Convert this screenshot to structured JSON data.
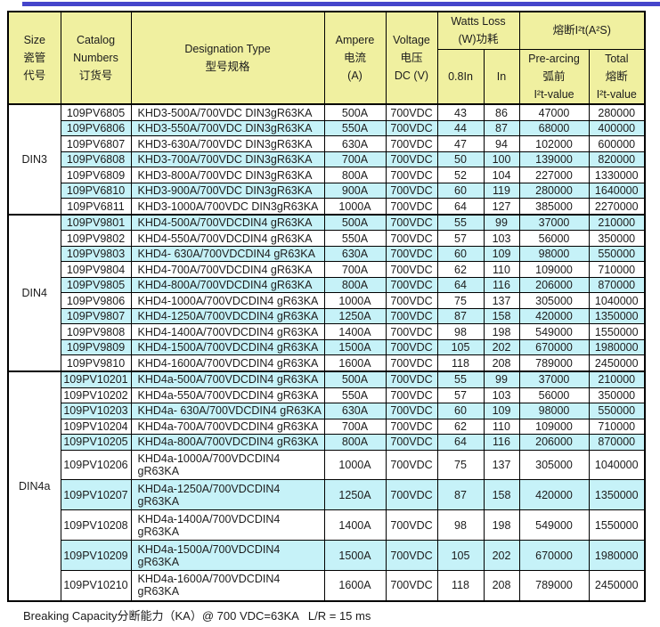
{
  "page": {
    "accent_bar_color": "#4545cb",
    "colors": {
      "header_bg": "#f0f0a0",
      "row_bg": "#ffffff",
      "row_alt_bg": "#c6f2f8",
      "border": "#000000"
    },
    "footer_note": "Breaking Capacity分断能力（KA）@ 700 VDC=63KA   L/R = 15 ms"
  },
  "table": {
    "header": {
      "size": [
        "Size",
        "瓷管",
        "代号"
      ],
      "catalog": [
        "Catalog",
        "Numbers",
        "订货号"
      ],
      "designation": [
        "Designation Type",
        "型号规格"
      ],
      "ampere": [
        "Ampere",
        "电流",
        "(A)"
      ],
      "voltage": [
        "Voltage",
        "电压",
        "DC (V)"
      ],
      "watts_loss_group": [
        "Watts Loss",
        "(W)功耗"
      ],
      "watts_sub_08in": "0.8In",
      "watts_sub_in": "In",
      "i2t_group": "熔断I²t(A²S)",
      "prearcing": [
        "Pre-arcing",
        "弧前",
        "I²t-value"
      ],
      "total": [
        "Total",
        "熔断",
        "I²t-value"
      ]
    },
    "groups": [
      {
        "size": "DIN3",
        "rows": [
          [
            "109PV6805",
            "KHD3-500A/700VDC DIN3gR63KA",
            "500A",
            "700VDC",
            "43",
            "86",
            "47000",
            "280000"
          ],
          [
            "109PV6806",
            "KHD3-550A/700VDC DIN3gR63KA",
            "550A",
            "700VDC",
            "44",
            "87",
            "68000",
            "400000"
          ],
          [
            "109PV6807",
            "KHD3-630A/700VDC DIN3gR63KA",
            "630A",
            "700VDC",
            "47",
            "94",
            "102000",
            "600000"
          ],
          [
            "109PV6808",
            "KHD3-700A/700VDC DIN3gR63KA",
            "700A",
            "700VDC",
            "50",
            "100",
            "139000",
            "820000"
          ],
          [
            "109PV6809",
            "KHD3-800A/700VDC DIN3gR63KA",
            "800A",
            "700VDC",
            "52",
            "104",
            "227000",
            "1330000"
          ],
          [
            "109PV6810",
            "KHD3-900A/700VDC DIN3gR63KA",
            "900A",
            "700VDC",
            "60",
            "119",
            "280000",
            "1640000"
          ],
          [
            "109PV6811",
            "KHD3-1000A/700VDC DIN3gR63KA",
            "1000A",
            "700VDC",
            "64",
            "127",
            "385000",
            "2270000"
          ]
        ]
      },
      {
        "size": "DIN4",
        "rows": [
          [
            "109PV9801",
            "KHD4-500A/700VDCDIN4 gR63KA",
            "500A",
            "700VDC",
            "55",
            "99",
            "37000",
            "210000"
          ],
          [
            "109PV9802",
            "KHD4-550A/700VDCDIN4 gR63KA",
            "550A",
            "700VDC",
            "57",
            "103",
            "56000",
            "350000"
          ],
          [
            "109PV9803",
            "KHD4- 630A/700VDCDIN4 gR63KA",
            "630A",
            "700VDC",
            "60",
            "109",
            "98000",
            "550000"
          ],
          [
            "109PV9804",
            "KHD4-700A/700VDCDIN4 gR63KA",
            "700A",
            "700VDC",
            "62",
            "110",
            "109000",
            "710000"
          ],
          [
            "109PV9805",
            "KHD4-800A/700VDCDIN4 gR63KA",
            "800A",
            "700VDC",
            "64",
            "116",
            "206000",
            "870000"
          ],
          [
            "109PV9806",
            "KHD4-1000A/700VDCDIN4 gR63KA",
            "1000A",
            "700VDC",
            "75",
            "137",
            "305000",
            "1040000"
          ],
          [
            "109PV9807",
            "KHD4-1250A/700VDCDIN4 gR63KA",
            "1250A",
            "700VDC",
            "87",
            "158",
            "420000",
            "1350000"
          ],
          [
            "109PV9808",
            "KHD4-1400A/700VDCDIN4 gR63KA",
            "1400A",
            "700VDC",
            "98",
            "198",
            "549000",
            "1550000"
          ],
          [
            "109PV9809",
            "KHD4-1500A/700VDCDIN4 gR63KA",
            "1500A",
            "700VDC",
            "105",
            "202",
            "670000",
            "1980000"
          ],
          [
            "109PV9810",
            "KHD4-1600A/700VDCDIN4 gR63KA",
            "1600A",
            "700VDC",
            "118",
            "208",
            "789000",
            "2450000"
          ]
        ]
      },
      {
        "size": "DIN4a",
        "rows": [
          [
            "109PV10201",
            "KHD4a-500A/700VDCDIN4 gR63KA",
            "500A",
            "700VDC",
            "55",
            "99",
            "37000",
            "210000"
          ],
          [
            "109PV10202",
            "KHD4a-550A/700VDCDIN4 gR63KA",
            "550A",
            "700VDC",
            "57",
            "103",
            "56000",
            "350000"
          ],
          [
            "109PV10203",
            "KHD4a- 630A/700VDCDIN4 gR63KA",
            "630A",
            "700VDC",
            "60",
            "109",
            "98000",
            "550000"
          ],
          [
            "109PV10204",
            "KHD4a-700A/700VDCDIN4 gR63KA",
            "700A",
            "700VDC",
            "62",
            "110",
            "109000",
            "710000"
          ],
          [
            "109PV10205",
            "KHD4a-800A/700VDCDIN4 gR63KA",
            "800A",
            "700VDC",
            "64",
            "116",
            "206000",
            "870000"
          ],
          [
            "109PV10206",
            "KHD4a-1000A/700VDCDIN4 gR63KA",
            "1000A",
            "700VDC",
            "75",
            "137",
            "305000",
            "1040000"
          ],
          [
            "109PV10207",
            "KHD4a-1250A/700VDCDIN4 gR63KA",
            "1250A",
            "700VDC",
            "87",
            "158",
            "420000",
            "1350000"
          ],
          [
            "109PV10208",
            "KHD4a-1400A/700VDCDIN4 gR63KA",
            "1400A",
            "700VDC",
            "98",
            "198",
            "549000",
            "1550000"
          ],
          [
            "109PV10209",
            "KHD4a-1500A/700VDCDIN4 gR63KA",
            "1500A",
            "700VDC",
            "105",
            "202",
            "670000",
            "1980000"
          ],
          [
            "109PV10210",
            "KHD4a-1600A/700VDCDIN4 gR63KA",
            "1600A",
            "700VDC",
            "118",
            "208",
            "789000",
            "2450000"
          ]
        ]
      }
    ]
  }
}
